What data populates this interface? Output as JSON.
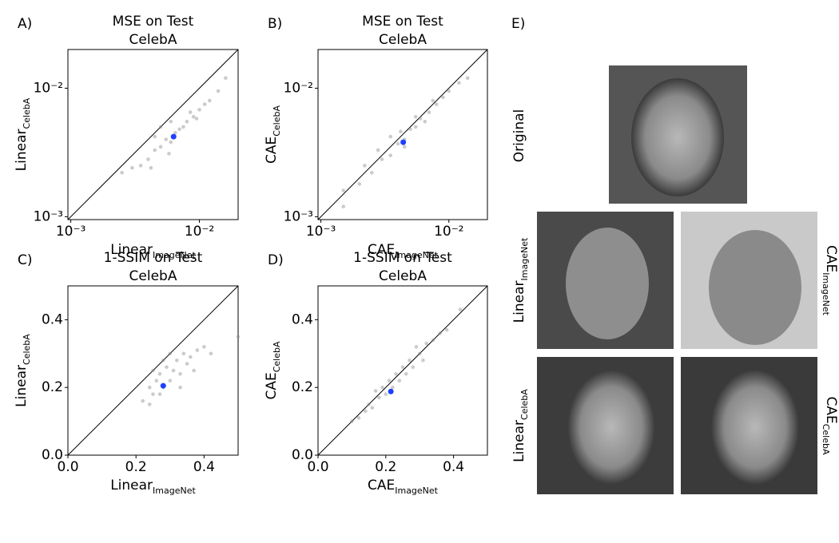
{
  "chart_data": [
    {
      "type": "scatter",
      "panel": "A)",
      "title": [
        "MSE on Test",
        "CelebA"
      ],
      "xlabel": {
        "text": "Linear",
        "subscript": "ImageNet"
      },
      "ylabel": {
        "text": "Linear",
        "subscript": "CelebA"
      },
      "xscale": "log",
      "yscale": "log",
      "xlim": [
        0.00095,
        0.02
      ],
      "ylim": [
        0.00095,
        0.02
      ],
      "xticks": [
        {
          "value": 0.001,
          "label": "10⁻³"
        },
        {
          "value": 0.01,
          "label": "10⁻²"
        }
      ],
      "yticks": [
        {
          "value": 0.001,
          "label": "10⁻³"
        },
        {
          "value": 0.01,
          "label": "10⁻²"
        }
      ],
      "series": [
        {
          "color": "#8c8c8c",
          "x": [
            0.0035,
            0.004,
            0.0045,
            0.005,
            0.0055,
            0.006,
            0.0065,
            0.007,
            0.0075,
            0.008,
            0.009,
            0.01,
            0.011,
            0.012,
            0.014,
            0.0045,
            0.005,
            0.006,
            0.0042,
            0.0058,
            0.0085,
            0.0095,
            0.0025,
            0.003,
            0.016
          ],
          "values": [
            0.0025,
            0.0028,
            0.0033,
            0.0035,
            0.004,
            0.0038,
            0.0045,
            0.0048,
            0.005,
            0.0055,
            0.006,
            0.0068,
            0.0075,
            0.008,
            0.0095,
            0.0042,
            0.005,
            0.0055,
            0.0024,
            0.0031,
            0.0065,
            0.0058,
            0.0022,
            0.0024,
            0.012
          ]
        },
        {
          "color": "#1f3fff",
          "x": [
            0.0063
          ],
          "values": [
            0.0042
          ]
        }
      ]
    },
    {
      "type": "scatter",
      "panel": "B)",
      "title": [
        "MSE on Test",
        "CelebA"
      ],
      "xlabel": {
        "text": "CAE",
        "subscript": "ImageNet"
      },
      "ylabel": {
        "text": "CAE",
        "subscript": "CelebA"
      },
      "xscale": "log",
      "yscale": "log",
      "xlim": [
        0.00095,
        0.02
      ],
      "ylim": [
        0.00095,
        0.02
      ],
      "xticks": [
        {
          "value": 0.001,
          "label": "10⁻³"
        },
        {
          "value": 0.01,
          "label": "10⁻²"
        }
      ],
      "yticks": [
        {
          "value": 0.001,
          "label": "10⁻³"
        },
        {
          "value": 0.01,
          "label": "10⁻²"
        }
      ],
      "series": [
        {
          "color": "#8c8c8c",
          "x": [
            0.0015,
            0.002,
            0.0025,
            0.003,
            0.0035,
            0.004,
            0.0045,
            0.005,
            0.0055,
            0.006,
            0.007,
            0.008,
            0.009,
            0.01,
            0.012,
            0.0035,
            0.0045,
            0.0055,
            0.0065,
            0.0028,
            0.0022,
            0.0075,
            0.0015,
            0.014,
            0.0042
          ],
          "values": [
            0.0016,
            0.0018,
            0.0022,
            0.0028,
            0.003,
            0.0037,
            0.004,
            0.0048,
            0.005,
            0.0058,
            0.0065,
            0.0075,
            0.0085,
            0.0095,
            0.011,
            0.0042,
            0.0035,
            0.006,
            0.0055,
            0.0033,
            0.0025,
            0.008,
            0.0012,
            0.012,
            0.0046
          ]
        },
        {
          "color": "#1f3fff",
          "x": [
            0.0044
          ],
          "values": [
            0.0038
          ]
        }
      ]
    },
    {
      "type": "scatter",
      "panel": "C)",
      "title": [
        "1-SSIM on Test",
        "CelebA"
      ],
      "xlabel": {
        "text": "Linear",
        "subscript": "ImageNet"
      },
      "ylabel": {
        "text": "Linear",
        "subscript": "CelebA"
      },
      "xscale": "linear",
      "yscale": "linear",
      "xlim": [
        0,
        0.5
      ],
      "ylim": [
        0,
        0.5
      ],
      "xticks": [
        {
          "value": 0,
          "label": "0.0"
        },
        {
          "value": 0.2,
          "label": "0.2"
        },
        {
          "value": 0.4,
          "label": "0.4"
        }
      ],
      "yticks": [
        {
          "value": 0,
          "label": "0.0"
        },
        {
          "value": 0.2,
          "label": "0.2"
        },
        {
          "value": 0.4,
          "label": "0.4"
        }
      ],
      "series": [
        {
          "color": "#8c8c8c",
          "x": [
            0.22,
            0.24,
            0.25,
            0.26,
            0.27,
            0.28,
            0.29,
            0.3,
            0.31,
            0.32,
            0.33,
            0.34,
            0.35,
            0.36,
            0.38,
            0.4,
            0.25,
            0.28,
            0.3,
            0.24,
            0.33,
            0.37,
            0.27,
            0.42,
            0.5
          ],
          "values": [
            0.16,
            0.2,
            0.18,
            0.22,
            0.24,
            0.2,
            0.26,
            0.22,
            0.25,
            0.28,
            0.24,
            0.3,
            0.27,
            0.29,
            0.31,
            0.32,
            0.25,
            0.28,
            0.3,
            0.15,
            0.2,
            0.25,
            0.18,
            0.3,
            0.35
          ]
        },
        {
          "color": "#1f3fff",
          "x": [
            0.28
          ],
          "values": [
            0.205
          ]
        }
      ]
    },
    {
      "type": "scatter",
      "panel": "D)",
      "title": [
        "1-SSIM on Test",
        "CelebA"
      ],
      "xlabel": {
        "text": "CAE",
        "subscript": "ImageNet"
      },
      "ylabel": {
        "text": "CAE",
        "subscript": "CelebA"
      },
      "xscale": "linear",
      "yscale": "linear",
      "xlim": [
        0,
        0.5
      ],
      "ylim": [
        0,
        0.5
      ],
      "xticks": [
        {
          "value": 0,
          "label": "0.0"
        },
        {
          "value": 0.2,
          "label": "0.2"
        },
        {
          "value": 0.4,
          "label": "0.4"
        }
      ],
      "yticks": [
        {
          "value": 0,
          "label": "0.0"
        },
        {
          "value": 0.2,
          "label": "0.2"
        },
        {
          "value": 0.4,
          "label": "0.4"
        }
      ],
      "series": [
        {
          "color": "#8c8c8c",
          "x": [
            0.1,
            0.12,
            0.14,
            0.15,
            0.16,
            0.18,
            0.19,
            0.2,
            0.21,
            0.22,
            0.23,
            0.24,
            0.25,
            0.26,
            0.27,
            0.28,
            0.3,
            0.31,
            0.32,
            0.34,
            0.36,
            0.38,
            0.42,
            0.17,
            0.29
          ],
          "values": [
            0.1,
            0.11,
            0.13,
            0.15,
            0.14,
            0.17,
            0.2,
            0.18,
            0.22,
            0.2,
            0.24,
            0.22,
            0.26,
            0.24,
            0.28,
            0.26,
            0.3,
            0.28,
            0.33,
            0.34,
            0.36,
            0.37,
            0.43,
            0.19,
            0.32
          ]
        },
        {
          "color": "#1f3fff",
          "x": [
            0.215
          ],
          "values": [
            0.188
          ]
        }
      ]
    }
  ],
  "panel_e": {
    "label": "E)",
    "images": [
      {
        "caption": {
          "text": "Original"
        }
      },
      {
        "caption": {
          "text": "Linear",
          "subscript": "ImageNet"
        }
      },
      {
        "caption": {
          "text": "CAE",
          "subscript": "ImageNet"
        }
      },
      {
        "caption": {
          "text": "Linear",
          "subscript": "CelebA"
        }
      },
      {
        "caption": {
          "text": "CAE",
          "subscript": "CelebA"
        }
      }
    ]
  }
}
